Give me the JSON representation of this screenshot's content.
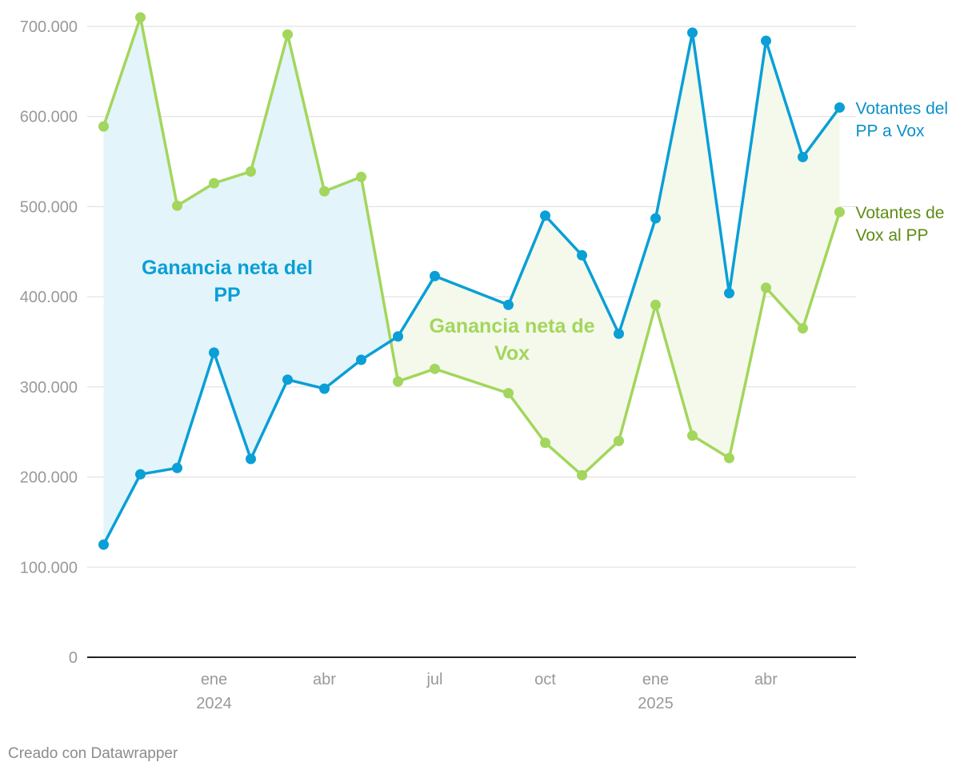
{
  "chart_data": {
    "type": "line",
    "title": "",
    "xlabel": "",
    "ylabel": "",
    "ylim": [
      0,
      700000
    ],
    "yticks": [
      0,
      100000,
      200000,
      300000,
      400000,
      500000,
      600000,
      700000
    ],
    "ytick_labels": [
      "0",
      "100.000",
      "200.000",
      "300.000",
      "400.000",
      "500.000",
      "600.000",
      "700.000"
    ],
    "x_labels": [
      {
        "month": 3,
        "line1": "ene",
        "line2": "2024"
      },
      {
        "month": 6,
        "line1": "abr",
        "line2": ""
      },
      {
        "month": 9,
        "line1": "jul",
        "line2": ""
      },
      {
        "month": 12,
        "line1": "oct",
        "line2": ""
      },
      {
        "month": 15,
        "line1": "ene",
        "line2": "2025"
      },
      {
        "month": 18,
        "line1": "abr",
        "line2": ""
      }
    ],
    "series": [
      {
        "name": "Votantes del PP a Vox",
        "label_lines": [
          "Votantes del",
          "PP a Vox"
        ],
        "color": "#0a9fd6",
        "label_color": "#0a90c8",
        "x": [
          0,
          1,
          2,
          3,
          4,
          5,
          6,
          7,
          8,
          9,
          11,
          12,
          13,
          14,
          15,
          16,
          17,
          18,
          19,
          20
        ],
        "values": [
          125000,
          203000,
          210000,
          338000,
          220000,
          308000,
          298000,
          330000,
          356000,
          423000,
          391000,
          490000,
          446000,
          359000,
          487000,
          693000,
          404000,
          684000,
          555000,
          610000
        ]
      },
      {
        "name": "Votantes de Vox al PP",
        "label_lines": [
          "Votantes de",
          "Vox al PP"
        ],
        "color": "#a3d65c",
        "label_color": "#5e8c13",
        "x": [
          0,
          1,
          2,
          3,
          4,
          5,
          6,
          7,
          8,
          9,
          11,
          12,
          13,
          14,
          15,
          16,
          17,
          18,
          19,
          20
        ],
        "values": [
          589000,
          710000,
          501000,
          526000,
          539000,
          691000,
          517000,
          533000,
          306000,
          320000,
          293000,
          238000,
          202000,
          240000,
          391000,
          246000,
          221000,
          410000,
          365000,
          494000
        ]
      }
    ],
    "area_annotations": [
      {
        "lines": [
          "Ganancia neta del",
          "PP"
        ],
        "color": "#0a9fd6",
        "fill": "#e3f4fa"
      },
      {
        "lines": [
          "Ganancia neta de",
          "Vox"
        ],
        "color": "#a3d65c",
        "fill": "#f4f9ec"
      }
    ]
  },
  "footer": "Creado con Datawrapper"
}
